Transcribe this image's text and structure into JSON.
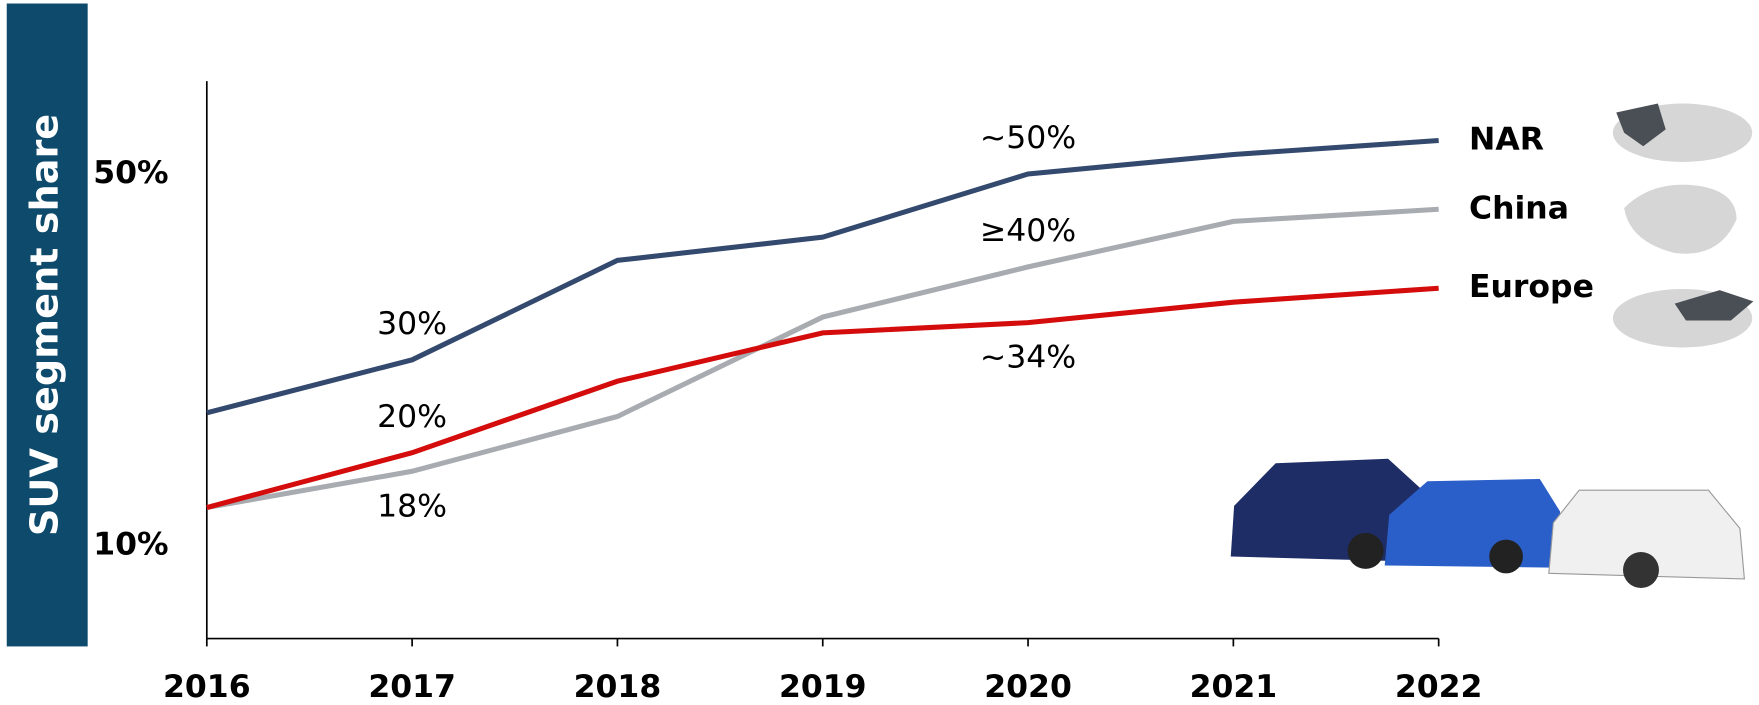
{
  "chart_data": {
    "type": "line",
    "y_label": "SUV segment share",
    "categories": [
      "2016",
      "2017",
      "2018",
      "2019",
      "2020",
      "2021",
      "2022"
    ],
    "ylim": [
      0,
      60
    ],
    "yticks": [
      {
        "value": 10,
        "label": "10%"
      },
      {
        "value": 50,
        "label": "50%"
      }
    ],
    "series": [
      {
        "name": "NAR",
        "color": "#34496e",
        "values": [
          24.3,
          30,
          40.7,
          43.2,
          50,
          52.1,
          53.6
        ],
        "value_labels": [
          null,
          "30%",
          null,
          null,
          "~50%",
          null,
          null
        ]
      },
      {
        "name": "China",
        "color": "#a8abb0",
        "values": [
          14.1,
          18,
          23.9,
          34.6,
          40,
          44.9,
          46.2
        ],
        "value_labels": [
          null,
          "18%",
          null,
          null,
          "≥40%",
          null,
          null
        ]
      },
      {
        "name": "Europe",
        "color": "#d40c0c",
        "values": [
          14.1,
          20,
          27.7,
          32.9,
          34,
          36.2,
          37.7
        ],
        "value_labels": [
          null,
          "20%",
          null,
          null,
          "~34%",
          null,
          null
        ]
      }
    ]
  }
}
